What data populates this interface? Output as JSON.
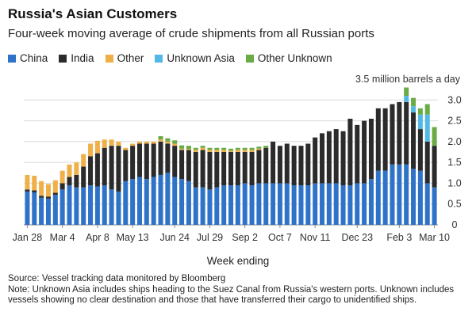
{
  "title": "Russia's Asian Customers",
  "subtitle": "Four-week moving average of crude shipments from all Russian ports",
  "legend": [
    {
      "label": "China",
      "color": "#2f73c9"
    },
    {
      "label": "India",
      "color": "#2b2b2b"
    },
    {
      "label": "Other",
      "color": "#efb04a"
    },
    {
      "label": "Unknown Asia",
      "color": "#52b8e6"
    },
    {
      "label": "Other Unknown",
      "color": "#6aab45"
    }
  ],
  "footer": {
    "source": "Source: Vessel tracking data monitored by Bloomberg",
    "note": "Note: Unknown Asia includes ships heading to the Suez Canal from Russia's western ports. Unknown includes vessels showing no clear destination and those that have transferred their cargo to unidentified ships."
  },
  "chart_data": {
    "type": "bar",
    "stacked": true,
    "xlabel": "Week ending",
    "ylabel": "",
    "unit_label": "3.5 million barrels a day",
    "ylim": [
      0,
      3.5
    ],
    "yticks": [
      0,
      0.5,
      1.0,
      1.5,
      2.0,
      2.5,
      3.0
    ],
    "ytick_labels": [
      "0",
      "0.5",
      "1.0",
      "1.5",
      "2.0",
      "2.5",
      "3.0"
    ],
    "xtick_labels": [
      {
        "index": 0,
        "label": "Jan 28"
      },
      {
        "index": 5,
        "label": "Mar 4"
      },
      {
        "index": 10,
        "label": "Apr 8"
      },
      {
        "index": 15,
        "label": "May 13"
      },
      {
        "index": 21,
        "label": "Jun 24"
      },
      {
        "index": 26,
        "label": "Jul 29"
      },
      {
        "index": 31,
        "label": "Sep 2"
      },
      {
        "index": 36,
        "label": "Oct 7"
      },
      {
        "index": 41,
        "label": "Nov 11"
      },
      {
        "index": 47,
        "label": "Dec 23"
      },
      {
        "index": 53,
        "label": "Feb 3"
      },
      {
        "index": 58,
        "label": "Mar 10"
      }
    ],
    "series": [
      {
        "name": "China",
        "color": "#2f73c9",
        "values": [
          0.8,
          0.78,
          0.65,
          0.63,
          0.72,
          0.85,
          0.95,
          0.9,
          0.9,
          0.95,
          0.92,
          0.95,
          0.85,
          0.8,
          1.05,
          1.1,
          1.15,
          1.1,
          1.15,
          1.2,
          1.25,
          1.15,
          1.1,
          1.05,
          0.9,
          0.9,
          0.85,
          0.9,
          0.95,
          0.95,
          0.95,
          1.0,
          0.95,
          1.0,
          1.0,
          1.0,
          1.0,
          1.0,
          0.95,
          0.95,
          0.95,
          1.0,
          1.0,
          1.0,
          1.0,
          0.95,
          0.95,
          1.0,
          1.0,
          1.1,
          1.3,
          1.3,
          1.45,
          1.45,
          1.45,
          1.35,
          1.3,
          1.0,
          0.9
        ]
      },
      {
        "name": "India",
        "color": "#2b2b2b",
        "values": [
          0.05,
          0.05,
          0.05,
          0.05,
          0.05,
          0.15,
          0.2,
          0.3,
          0.5,
          0.7,
          0.8,
          0.9,
          1.05,
          1.1,
          0.75,
          0.8,
          0.8,
          0.85,
          0.8,
          0.8,
          0.7,
          0.75,
          0.7,
          0.75,
          0.85,
          0.9,
          0.9,
          0.85,
          0.8,
          0.8,
          0.8,
          0.75,
          0.8,
          0.8,
          0.85,
          1.0,
          0.9,
          0.95,
          0.95,
          0.95,
          1.0,
          1.1,
          1.2,
          1.25,
          1.3,
          1.3,
          1.6,
          1.4,
          1.5,
          1.45,
          1.5,
          1.5,
          1.45,
          1.5,
          1.5,
          1.35,
          1.0,
          1.0,
          1.0
        ]
      },
      {
        "name": "Other",
        "color": "#efb04a",
        "values": [
          0.35,
          0.35,
          0.35,
          0.3,
          0.3,
          0.3,
          0.3,
          0.3,
          0.3,
          0.3,
          0.3,
          0.2,
          0.15,
          0.1,
          0.05,
          0.05,
          0.05,
          0.05,
          0.05,
          0.05,
          0.05,
          0.05,
          0.03,
          0.02,
          0.05,
          0.05,
          0.05,
          0.05,
          0.05,
          0.03,
          0.05,
          0.05,
          0.05,
          0.03,
          0.0,
          0.0,
          0.0,
          0.0,
          0.0,
          0.0,
          0.0,
          0.0,
          0.0,
          0.0,
          0.0,
          0.0,
          0.0,
          0.0,
          0.0,
          0.0,
          0.0,
          0.0,
          0.0,
          0.0,
          0.0,
          0.0,
          0.0,
          0.0,
          0.0
        ]
      },
      {
        "name": "Unknown Asia",
        "color": "#52b8e6",
        "values": [
          0,
          0,
          0,
          0,
          0,
          0,
          0,
          0,
          0,
          0,
          0,
          0,
          0,
          0,
          0,
          0,
          0,
          0,
          0,
          0,
          0,
          0,
          0,
          0,
          0,
          0,
          0,
          0,
          0,
          0,
          0,
          0,
          0,
          0,
          0,
          0,
          0,
          0,
          0,
          0,
          0,
          0,
          0,
          0,
          0,
          0,
          0,
          0,
          0,
          0,
          0,
          0,
          0,
          0,
          0.15,
          0.15,
          0.35,
          0.65,
          0.0
        ]
      },
      {
        "name": "Other Unknown",
        "color": "#6aab45",
        "values": [
          0,
          0,
          0,
          0,
          0,
          0,
          0,
          0,
          0,
          0,
          0,
          0,
          0,
          0,
          0,
          0,
          0,
          0,
          0,
          0.08,
          0.08,
          0.08,
          0.08,
          0.08,
          0.05,
          0.05,
          0.05,
          0.05,
          0.05,
          0.05,
          0.05,
          0.05,
          0.05,
          0.05,
          0.05,
          0.0,
          0.0,
          0.0,
          0.0,
          0.0,
          0.0,
          0.0,
          0.0,
          0.0,
          0.0,
          0.0,
          0.0,
          0.0,
          0.0,
          0.0,
          0.0,
          0.0,
          0.0,
          0.0,
          0.2,
          0.2,
          0.15,
          0.25,
          0.45
        ]
      }
    ]
  }
}
